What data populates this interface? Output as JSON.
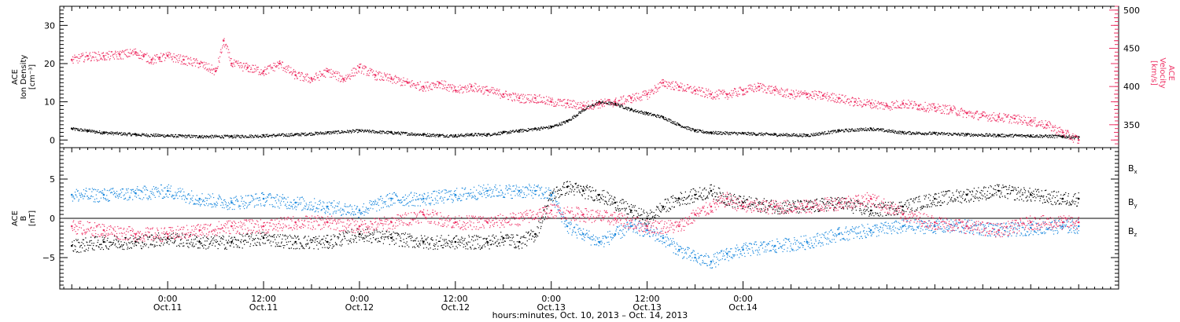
{
  "chart_data": [
    {
      "type": "scatter",
      "panel": "top",
      "y_axis_left": {
        "title_lines": [
          "ACE",
          "Ion Density",
          "[cm⁻³]"
        ],
        "ticks": [
          0,
          10,
          20,
          30
        ],
        "tick_labels": [
          "0",
          "10",
          "20",
          "30"
        ],
        "ylim": [
          -2,
          35
        ],
        "color": "#000000"
      },
      "y_axis_right": {
        "title_lines": [
          "ACE",
          "Velocity",
          "[km/s]"
        ],
        "ticks": [
          350,
          400,
          450,
          500
        ],
        "tick_labels": [
          "350",
          "400",
          "450",
          "500"
        ],
        "ylim": [
          320,
          505
        ],
        "color": "#ee3366"
      },
      "series": [
        {
          "axis": "left",
          "color": "#000000",
          "x": [
            -12,
            -10,
            -8,
            -4,
            0,
            4,
            8,
            12,
            16,
            20,
            24,
            28,
            32,
            34,
            36,
            38,
            40,
            42,
            44,
            46,
            48,
            50,
            52,
            54,
            56,
            58,
            60,
            62,
            64,
            66,
            68,
            72,
            76,
            80,
            84,
            88,
            92,
            96,
            100,
            104,
            108,
            112,
            114
          ],
          "values": [
            3,
            2.5,
            2,
            1.5,
            1.2,
            1,
            1,
            1.2,
            1.5,
            2,
            2.5,
            2,
            1.5,
            1.3,
            1.2,
            1.5,
            1.5,
            2,
            2.5,
            3,
            3.5,
            5,
            8,
            10,
            9.5,
            8,
            7,
            6,
            4,
            2.5,
            2,
            1.8,
            1.5,
            1.3,
            2.5,
            3,
            2,
            1.8,
            1.5,
            1.3,
            1.2,
            1,
            0.8
          ]
        },
        {
          "axis": "right",
          "color": "#ee3366",
          "x": [
            -12,
            -10,
            -8,
            -6,
            -4,
            -3,
            -2,
            -1,
            0,
            2,
            4,
            6,
            7,
            8,
            10,
            12,
            14,
            16,
            18,
            20,
            22,
            24,
            26,
            28,
            30,
            32,
            34,
            36,
            38,
            40,
            42,
            44,
            46,
            48,
            50,
            52,
            54,
            56,
            58,
            60,
            62,
            64,
            66,
            68,
            70,
            72,
            74,
            76,
            78,
            80,
            82,
            84,
            86,
            88,
            90,
            92,
            94,
            96,
            98,
            100,
            102,
            104,
            106,
            108,
            110,
            112,
            114
          ],
          "values": [
            435,
            440,
            440,
            442,
            445,
            440,
            435,
            438,
            440,
            435,
            430,
            420,
            460,
            430,
            425,
            420,
            430,
            415,
            410,
            420,
            410,
            425,
            415,
            410,
            405,
            400,
            405,
            395,
            400,
            395,
            390,
            385,
            385,
            380,
            378,
            375,
            378,
            380,
            385,
            390,
            405,
            400,
            395,
            390,
            390,
            395,
            400,
            395,
            390,
            390,
            388,
            385,
            380,
            378,
            375,
            378,
            375,
            372,
            370,
            365,
            362,
            360,
            358,
            355,
            350,
            340,
            330
          ]
        }
      ]
    },
    {
      "type": "scatter",
      "panel": "bottom",
      "y_axis_left": {
        "title_lines": [
          "ACE",
          "B",
          "[nT]"
        ],
        "ticks": [
          -5,
          0,
          5
        ],
        "tick_labels": [
          "−5",
          "0",
          "5"
        ],
        "ylim": [
          -9,
          9
        ],
        "color": "#000000"
      },
      "legend_position": "right",
      "series": [
        {
          "name_main": "B",
          "name_sub": "x",
          "color": "#000000",
          "x": [
            -12,
            -8,
            -4,
            0,
            4,
            8,
            12,
            16,
            20,
            24,
            28,
            32,
            36,
            40,
            42,
            44,
            46,
            48,
            50,
            52,
            54,
            56,
            58,
            60,
            62,
            64,
            66,
            68,
            70,
            72,
            76,
            80,
            84,
            88,
            92,
            96,
            100,
            104,
            108,
            112,
            114
          ],
          "values": [
            -3.5,
            -3,
            -3,
            -2.5,
            -3,
            -3,
            -2.5,
            -3,
            -3,
            -2,
            -2.5,
            -3,
            -3,
            -3,
            -2.5,
            -3,
            -2,
            3,
            4,
            3.5,
            3,
            2,
            1,
            0,
            1.5,
            2.5,
            3,
            3.5,
            2.5,
            2,
            1.5,
            1.5,
            2,
            1,
            1.5,
            2.5,
            3,
            3.5,
            3,
            2.5,
            2.5
          ]
        },
        {
          "name_main": "B",
          "name_sub": "y",
          "color": "#1a88dd",
          "x": [
            -12,
            -8,
            -4,
            0,
            4,
            8,
            12,
            16,
            20,
            24,
            28,
            32,
            36,
            40,
            44,
            46,
            48,
            50,
            52,
            54,
            56,
            58,
            60,
            62,
            64,
            66,
            68,
            70,
            72,
            76,
            80,
            84,
            88,
            92,
            96,
            100,
            104,
            108,
            112,
            114
          ],
          "values": [
            3,
            3,
            3.2,
            3.5,
            2.5,
            2,
            2.5,
            2,
            1.5,
            1,
            2.5,
            2.5,
            3,
            3.5,
            3.5,
            3.5,
            3,
            -1,
            -2,
            -3,
            -2,
            -1,
            -1.5,
            -2.5,
            -4,
            -5,
            -5.5,
            -4.5,
            -4,
            -3.5,
            -3,
            -2,
            -1.5,
            -1,
            -1,
            -1,
            -1.5,
            -1.2,
            -1,
            -1
          ]
        },
        {
          "name_main": "B",
          "name_sub": "z",
          "color": "#ee3366",
          "x": [
            -12,
            -8,
            -4,
            0,
            4,
            8,
            12,
            16,
            20,
            24,
            28,
            32,
            36,
            40,
            44,
            48,
            52,
            56,
            60,
            64,
            66,
            68,
            70,
            72,
            76,
            80,
            84,
            88,
            92,
            96,
            100,
            104,
            108,
            112,
            114
          ],
          "values": [
            -1,
            -1.5,
            -2,
            -2,
            -1.5,
            -1,
            -1,
            -0.5,
            -0.5,
            -1,
            -0.5,
            0.5,
            -0.5,
            -0.5,
            0,
            1,
            0.5,
            0,
            -1,
            -1,
            0.5,
            1.5,
            2.5,
            1.5,
            1.5,
            1.5,
            2,
            2.5,
            0.5,
            -0.5,
            -1,
            -1.5,
            -0.5,
            -0.5,
            -0.5
          ]
        }
      ]
    }
  ],
  "x_axis": {
    "xlim": [
      -13.5,
      119
    ],
    "ticks": [
      {
        "hours": 0,
        "time": "0:00",
        "date": "Oct.11"
      },
      {
        "hours": 12,
        "time": "12:00",
        "date": "Oct.11"
      },
      {
        "hours": 24,
        "time": "0:00",
        "date": "Oct.12"
      },
      {
        "hours": 36,
        "time": "12:00",
        "date": "Oct.12"
      },
      {
        "hours": 48,
        "time": "0:00",
        "date": "Oct.13"
      },
      {
        "hours": 60,
        "time": "12:00",
        "date": "Oct.13"
      },
      {
        "hours": 72,
        "time": "0:00",
        "date": "Oct.14"
      }
    ],
    "label": "hours:minutes, Oct. 10, 2013 – Oct. 14, 2013"
  }
}
